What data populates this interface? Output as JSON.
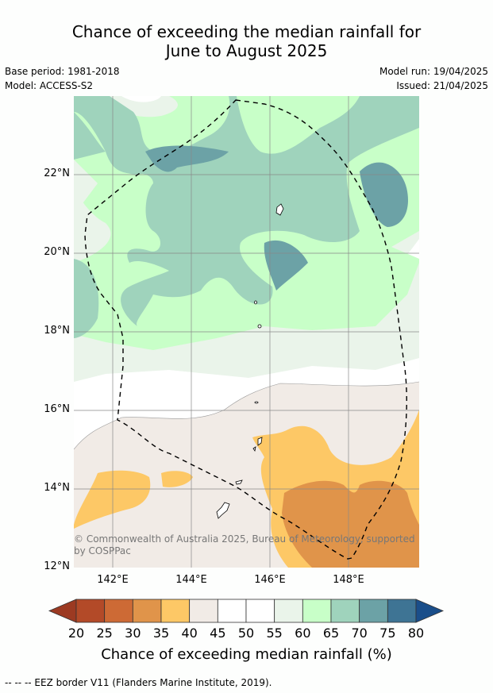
{
  "title_line1": "Chance of exceeding the median rainfall for",
  "title_line2": "June to August 2025",
  "base_period": "Base period: 1981-2018",
  "model": "Model: ACCESS-S2",
  "model_run": "Model run: 19/04/2025",
  "issued": "Issued: 21/04/2025",
  "lat_labels": [
    "22°N",
    "20°N",
    "18°N",
    "16°N",
    "14°N",
    "12°N"
  ],
  "lon_labels": [
    "142°E",
    "144°E",
    "146°E",
    "148°E"
  ],
  "copyright_line1": "© Commonwealth of Australia 2025, Bureau of Meteorology, supported",
  "copyright_line2": "by COSPPac",
  "colorbar": {
    "ticks": [
      "20",
      "25",
      "30",
      "35",
      "40",
      "45",
      "50",
      "55",
      "60",
      "65",
      "70",
      "75",
      "80"
    ],
    "colors": [
      "#b34a28",
      "#cd6a35",
      "#e0944a",
      "#fdc866",
      "#f1ebe6",
      "#ffffff",
      "#ffffff",
      "#eaf4ea",
      "#c8ffc8",
      "#9fd3bc",
      "#6ca2a6",
      "#3e7494"
    ],
    "low_color": "#9c3a22",
    "high_color": "#1a4e8a",
    "title": "Chance of exceeding median rainfall (%)"
  },
  "footnote": "--  --  -- EEZ border V11 (Flanders Marine Institute, 2019)."
}
